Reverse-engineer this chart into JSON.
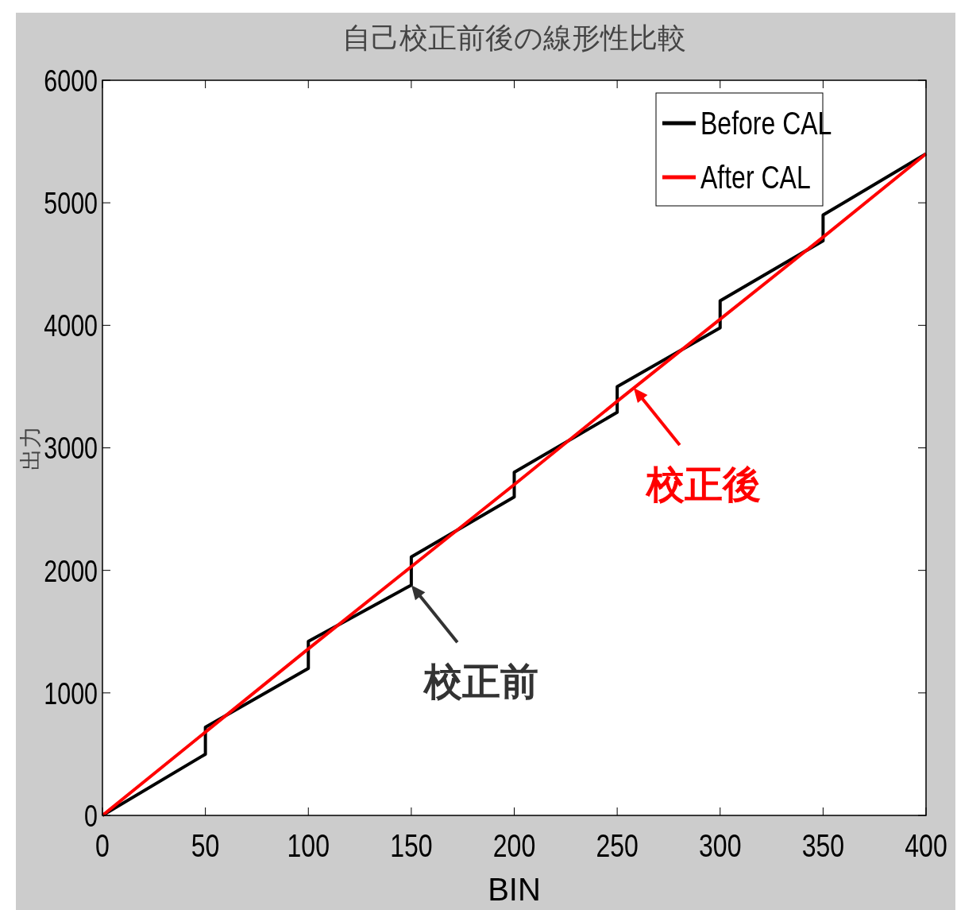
{
  "chart_data": {
    "type": "line",
    "title": "自己校正前後の線形性比較",
    "xlabel": "BIN",
    "ylabel": "出力",
    "xlim": [
      0,
      400
    ],
    "xticks": [
      0,
      50,
      100,
      150,
      200,
      250,
      300,
      350,
      400
    ],
    "ylim": [
      0,
      6000
    ],
    "yticks": [
      0,
      1000,
      2000,
      3000,
      4000,
      5000,
      6000
    ],
    "grid": false,
    "legend": "top right",
    "line_style": "solid",
    "marker": "none",
    "series": [
      {
        "name": "Before CAL",
        "color": "#000000",
        "x": [
          0,
          50,
          50,
          100,
          100,
          150,
          150,
          200,
          200,
          250,
          250,
          300,
          300,
          350,
          350,
          400
        ],
        "values": [
          0,
          500,
          720,
          1200,
          1420,
          1880,
          2110,
          2600,
          2800,
          3290,
          3500,
          3980,
          4200,
          4690,
          4900,
          5400
        ]
      },
      {
        "name": "After CAL",
        "color": "#ff0000",
        "x": [
          0,
          50,
          100,
          150,
          200,
          250,
          300,
          350,
          400
        ],
        "values": [
          0,
          680,
          1360,
          2030,
          2700,
          3380,
          4050,
          4720,
          5400
        ]
      }
    ],
    "annotations": [
      {
        "text": "校正前",
        "x": 150,
        "y": 1880
      },
      {
        "text": "校正後",
        "x": 258,
        "y": 3490
      }
    ]
  }
}
